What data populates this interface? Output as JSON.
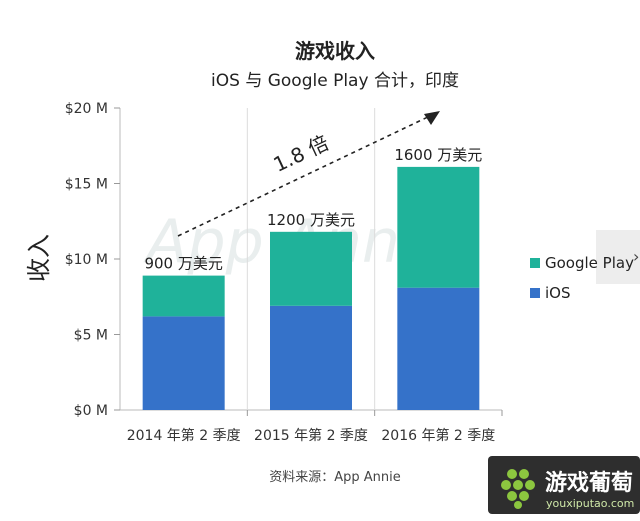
{
  "chart_data": {
    "type": "bar",
    "stacked": true,
    "title": "游戏收入",
    "subtitle": "iOS 与 Google Play 合计，印度",
    "ylabel": "收入",
    "xlabel": "",
    "categories": [
      "2014 年第 2 季度",
      "2015 年第 2 季度",
      "2016 年第 2 季度"
    ],
    "series": [
      {
        "name": "iOS",
        "color": "#3572c9",
        "values": [
          6.2,
          6.9,
          8.1
        ]
      },
      {
        "name": "Google Play",
        "color": "#1fb29a",
        "values": [
          2.7,
          4.9,
          8.0
        ]
      }
    ],
    "totals_labels": [
      "900 万美元",
      "1200 万美元",
      "1600 万美元"
    ],
    "ylim": [
      0,
      20
    ],
    "yticks": [
      0,
      5,
      10,
      15,
      20
    ],
    "ytick_labels": [
      "$0 M",
      "$5 M",
      "$10 M",
      "$15 M",
      "$20 M"
    ],
    "grid": "vertical-dividers",
    "legend_position": "right",
    "growth_annotation": "1.8 倍",
    "source": "资料来源：App Annie",
    "watermark": "App Annie"
  },
  "logo": {
    "name": "游戏葡萄",
    "url": "youxiputao.com"
  }
}
